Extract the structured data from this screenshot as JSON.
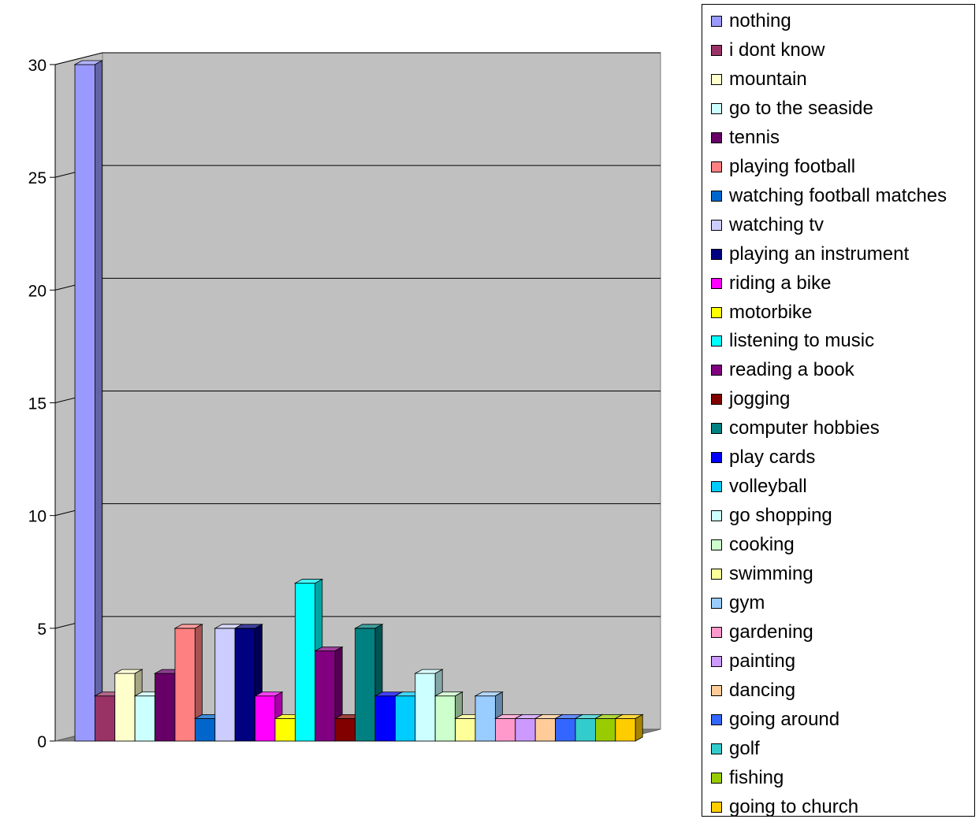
{
  "chart_data": {
    "type": "bar",
    "title": "",
    "xlabel": "",
    "ylabel": "",
    "ylim": [
      0,
      30
    ],
    "yticks": [
      0,
      5,
      10,
      15,
      20,
      25,
      30
    ],
    "grid": true,
    "legend_position": "right",
    "series": [
      {
        "name": "nothing",
        "value": 30,
        "color": "#9999ff"
      },
      {
        "name": "i dont know",
        "value": 2,
        "color": "#993366"
      },
      {
        "name": "mountain",
        "value": 3,
        "color": "#ffffcc"
      },
      {
        "name": "go to the seaside",
        "value": 2,
        "color": "#ccffff"
      },
      {
        "name": "tennis",
        "value": 3,
        "color": "#660066"
      },
      {
        "name": "playing football",
        "value": 5,
        "color": "#ff8080"
      },
      {
        "name": "watching football matches",
        "value": 1,
        "color": "#0066cc"
      },
      {
        "name": "watching tv",
        "value": 5,
        "color": "#ccccff"
      },
      {
        "name": "playing an instrument",
        "value": 5,
        "color": "#000080"
      },
      {
        "name": "riding a bike",
        "value": 2,
        "color": "#ff00ff"
      },
      {
        "name": "motorbike",
        "value": 1,
        "color": "#ffff00"
      },
      {
        "name": "listening to music",
        "value": 7,
        "color": "#00ffff"
      },
      {
        "name": "reading a book",
        "value": 4,
        "color": "#800080"
      },
      {
        "name": "jogging",
        "value": 1,
        "color": "#800000"
      },
      {
        "name": "computer hobbies",
        "value": 5,
        "color": "#008080"
      },
      {
        "name": "play cards",
        "value": 2,
        "color": "#0000ff"
      },
      {
        "name": "volleyball",
        "value": 2,
        "color": "#00ccff"
      },
      {
        "name": "go shopping",
        "value": 3,
        "color": "#ccffff"
      },
      {
        "name": "cooking",
        "value": 2,
        "color": "#ccffcc"
      },
      {
        "name": "swimming",
        "value": 1,
        "color": "#ffff99"
      },
      {
        "name": "gym",
        "value": 2,
        "color": "#99ccff"
      },
      {
        "name": "gardening",
        "value": 1,
        "color": "#ff99cc"
      },
      {
        "name": "painting",
        "value": 1,
        "color": "#cc99ff"
      },
      {
        "name": "dancing",
        "value": 1,
        "color": "#ffcc99"
      },
      {
        "name": "going around",
        "value": 1,
        "color": "#3366ff"
      },
      {
        "name": "golf",
        "value": 1,
        "color": "#33cccc"
      },
      {
        "name": "fishing",
        "value": 1,
        "color": "#99cc00"
      },
      {
        "name": "going to church",
        "value": 1,
        "color": "#ffcc00"
      }
    ]
  }
}
